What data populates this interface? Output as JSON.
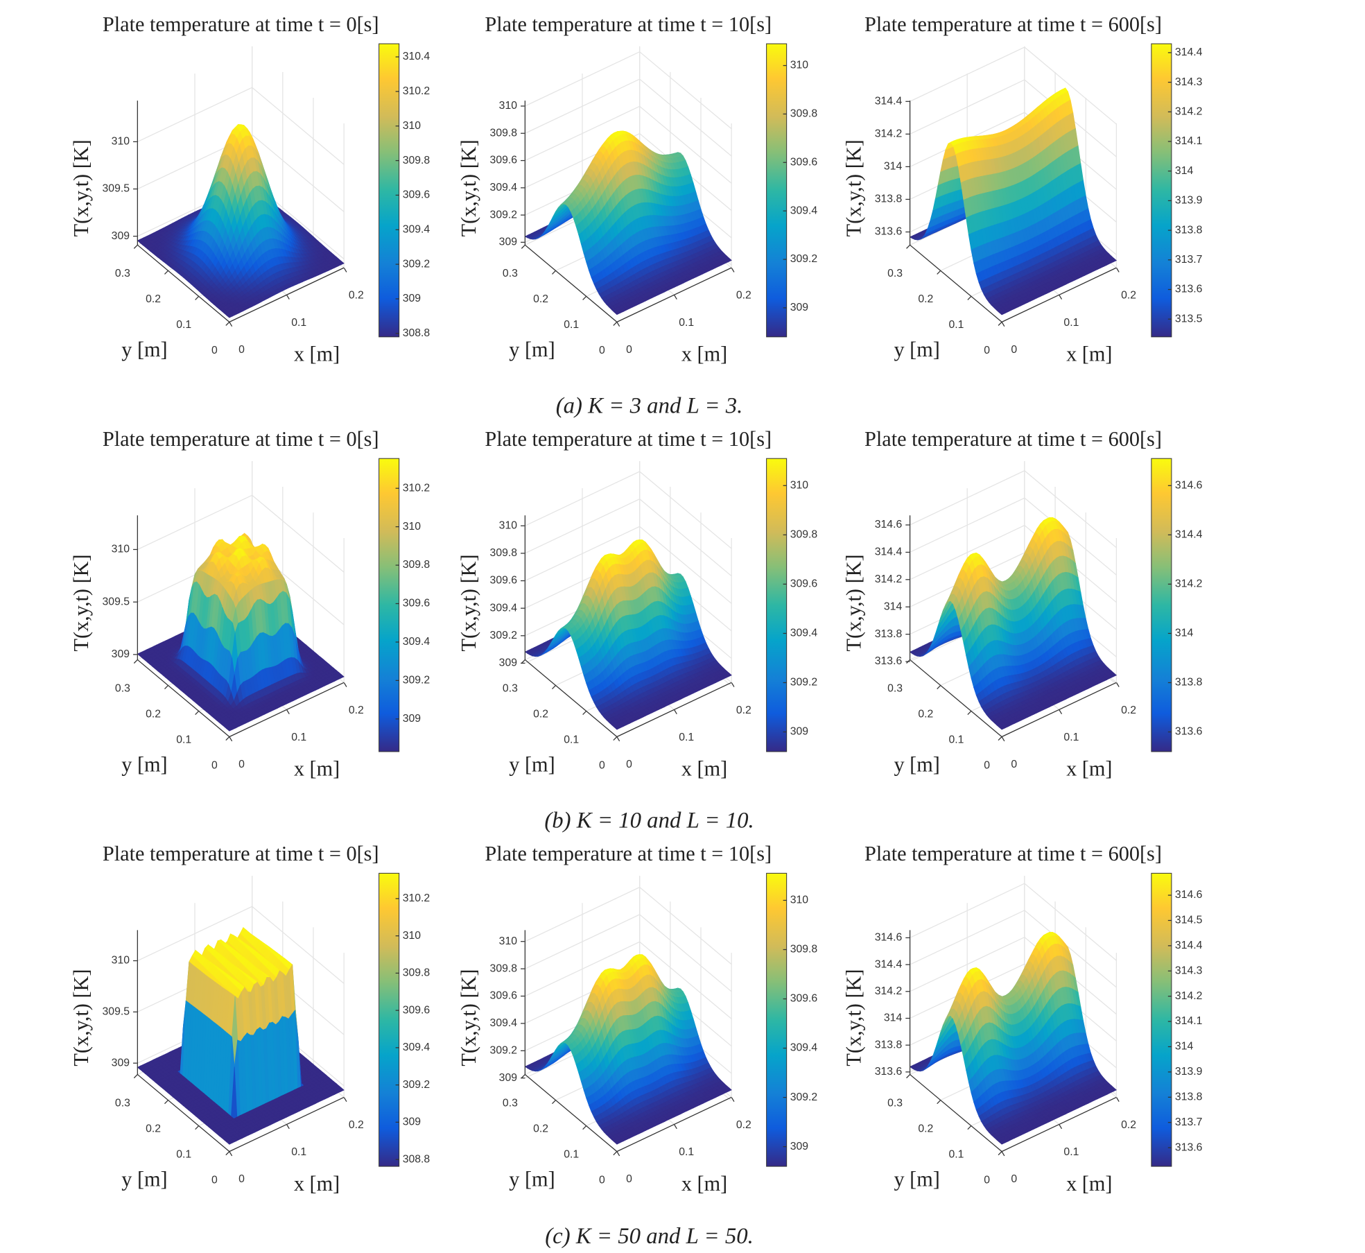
{
  "chart_data": [
    {
      "type": "surface",
      "title": "Plate temperature at time t = 0[s]",
      "x_label": "x [m]",
      "y_label": "y [m]",
      "z_label": "T(x,y,t) [K]",
      "xlim": [
        0,
        0.2
      ],
      "xticks": [
        0,
        0.1,
        0.2
      ],
      "ylim": [
        0,
        0.3
      ],
      "yticks": [
        0,
        0.1,
        0.2,
        0.3
      ],
      "zlim": [
        308.907,
        310.435
      ],
      "zticks": [
        309,
        309.5,
        310
      ],
      "colorbar": {
        "clim": [
          308.78,
          310.476
        ],
        "ticks": [
          308.8,
          309,
          309.2,
          309.4,
          309.6,
          309.8,
          310,
          310.2,
          310.4
        ]
      }
    },
    {
      "type": "surface",
      "title": "Plate temperature at time t = 10[s]",
      "x_label": "x [m]",
      "y_label": "y [m]",
      "z_label": "T(x,y,t) [K]",
      "xlim": [
        0,
        0.2
      ],
      "xticks": [
        0,
        0.1,
        0.2
      ],
      "ylim": [
        0,
        0.3
      ],
      "yticks": [
        0,
        0.1,
        0.2,
        0.3
      ],
      "zlim": [
        308.98,
        310.04
      ],
      "zticks": [
        309,
        309.2,
        309.4,
        309.6,
        309.8,
        310
      ],
      "colorbar": {
        "clim": [
          308.88,
          310.09
        ],
        "ticks": [
          309,
          309.2,
          309.4,
          309.6,
          309.8,
          310
        ]
      }
    },
    {
      "type": "surface",
      "title": "Plate temperature at time t = 600[s]",
      "x_label": "x [m]",
      "y_label": "y [m]",
      "z_label": "T(x,y,t) [K]",
      "xlim": [
        0,
        0.2
      ],
      "xticks": [
        0,
        0.1,
        0.2
      ],
      "ylim": [
        0,
        0.3
      ],
      "yticks": [
        0,
        0.1,
        0.2,
        0.3
      ],
      "zlim": [
        313.52,
        314.405
      ],
      "zticks": [
        313.6,
        313.8,
        314,
        314.2,
        314.4
      ],
      "colorbar": {
        "clim": [
          313.44,
          314.43
        ],
        "ticks": [
          313.5,
          313.6,
          313.7,
          313.8,
          313.9,
          314,
          314.1,
          314.2,
          314.3,
          314.4
        ]
      }
    },
    {
      "type": "surface",
      "title": "Plate temperature at time t = 0[s]",
      "x_label": "x [m]",
      "y_label": "y [m]",
      "z_label": "T(x,y,t) [K]",
      "xlim": [
        0,
        0.2
      ],
      "xticks": [
        0,
        0.1,
        0.2
      ],
      "ylim": [
        0,
        0.3
      ],
      "yticks": [
        0,
        0.1,
        0.2,
        0.3
      ],
      "zlim": [
        308.95,
        310.325
      ],
      "zticks": [
        309,
        309.5,
        310
      ],
      "colorbar": {
        "clim": [
          308.83,
          310.355
        ],
        "ticks": [
          309,
          309.2,
          309.4,
          309.6,
          309.8,
          310,
          310.2
        ]
      }
    },
    {
      "type": "surface",
      "title": "Plate temperature at time t = 10[s]",
      "x_label": "x [m]",
      "y_label": "y [m]",
      "z_label": "T(x,y,t) [K]",
      "xlim": [
        0,
        0.2
      ],
      "xticks": [
        0,
        0.1,
        0.2
      ],
      "ylim": [
        0,
        0.3
      ],
      "yticks": [
        0,
        0.1,
        0.2,
        0.3
      ],
      "zlim": [
        309.025,
        310.076
      ],
      "zticks": [
        309,
        309.2,
        309.4,
        309.6,
        309.8,
        310
      ],
      "colorbar": {
        "clim": [
          308.92,
          310.11
        ],
        "ticks": [
          309,
          309.2,
          309.4,
          309.6,
          309.8,
          310
        ]
      }
    },
    {
      "type": "surface",
      "title": "Plate temperature at time t = 600[s]",
      "x_label": "x [m]",
      "y_label": "y [m]",
      "z_label": "T(x,y,t) [K]",
      "xlim": [
        0,
        0.2
      ],
      "xticks": [
        0,
        0.1,
        0.2
      ],
      "ylim": [
        0,
        0.3
      ],
      "yticks": [
        0,
        0.1,
        0.2,
        0.3
      ],
      "zlim": [
        313.613,
        314.67
      ],
      "zticks": [
        313.6,
        313.8,
        314,
        314.2,
        314.4,
        314.6
      ],
      "colorbar": {
        "clim": [
          313.52,
          314.71
        ],
        "ticks": [
          313.6,
          313.8,
          314,
          314.2,
          314.4,
          314.6
        ]
      }
    },
    {
      "type": "surface",
      "title": "Plate temperature at time t = 0[s]",
      "x_label": "x [m]",
      "y_label": "y [m]",
      "z_label": "T(x,y,t) [K]",
      "xlim": [
        0,
        0.2
      ],
      "xticks": [
        0,
        0.1,
        0.2
      ],
      "ylim": [
        0,
        0.3
      ],
      "yticks": [
        0,
        0.1,
        0.2,
        0.3
      ],
      "zlim": [
        308.889,
        310.299
      ],
      "zticks": [
        309,
        309.5,
        310
      ],
      "colorbar": {
        "clim": [
          308.763,
          310.336
        ],
        "ticks": [
          308.8,
          309,
          309.2,
          309.4,
          309.6,
          309.8,
          310,
          310.2
        ]
      }
    },
    {
      "type": "surface",
      "title": "Plate temperature at time t = 10[s]",
      "x_label": "x [m]",
      "y_label": "y [m]",
      "z_label": "T(x,y,t) [K]",
      "xlim": [
        0,
        0.2
      ],
      "xticks": [
        0,
        0.1,
        0.2
      ],
      "ylim": [
        0,
        0.3
      ],
      "yticks": [
        0,
        0.1,
        0.2,
        0.3
      ],
      "zlim": [
        309.026,
        310.083
      ],
      "zticks": [
        309,
        309.2,
        309.4,
        309.6,
        309.8,
        310
      ],
      "colorbar": {
        "clim": [
          308.92,
          310.11
        ],
        "ticks": [
          309,
          309.2,
          309.4,
          309.6,
          309.8,
          310
        ]
      }
    },
    {
      "type": "surface",
      "title": "Plate temperature at time t = 600[s]",
      "x_label": "x [m]",
      "y_label": "y [m]",
      "z_label": "T(x,y,t) [K]",
      "xlim": [
        0,
        0.2
      ],
      "xticks": [
        0,
        0.1,
        0.2
      ],
      "ylim": [
        0,
        0.3
      ],
      "yticks": [
        0,
        0.1,
        0.2,
        0.3
      ],
      "zlim": [
        313.581,
        314.657
      ],
      "zticks": [
        313.6,
        313.8,
        314,
        314.2,
        314.4,
        314.6
      ],
      "colorbar": {
        "clim": [
          313.526,
          314.687
        ],
        "ticks": [
          313.6,
          313.7,
          313.8,
          313.9,
          314,
          314.1,
          314.2,
          314.3,
          314.4,
          314.5,
          314.6
        ]
      }
    }
  ],
  "captions": [
    "(a) K = 3 and L = 3.",
    "(b) K = 10 and L = 10.",
    "(c) K = 50 and L = 50."
  ]
}
